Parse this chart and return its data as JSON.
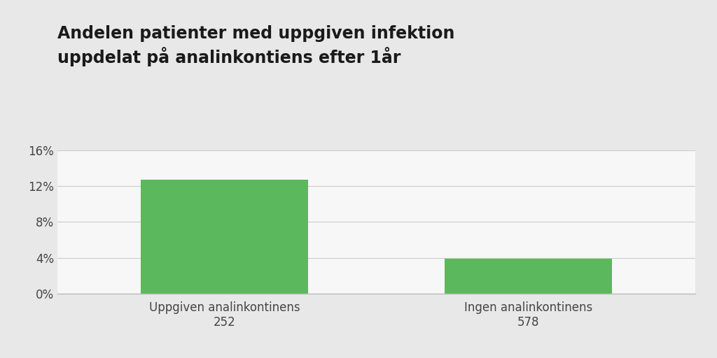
{
  "title_line1": "Andelen patienter med uppgiven infektion",
  "title_line2": "uppdelat på analinkontiens efter 1år",
  "categories_line1": [
    "Uppgiven analinkontinens",
    "Ingen analinkontinens"
  ],
  "categories_line2": [
    "252",
    "578"
  ],
  "values": [
    0.127,
    0.039
  ],
  "bar_color": "#5cb85c",
  "background_color": "#e8e8e8",
  "plot_background_color": "#f7f7f7",
  "ylim": [
    0,
    0.16
  ],
  "yticks": [
    0,
    0.04,
    0.08,
    0.12,
    0.16
  ],
  "ytick_labels": [
    "0%",
    "4%",
    "8%",
    "12%",
    "16%"
  ],
  "title_fontsize": 17,
  "tick_fontsize": 12,
  "label_fontsize": 12,
  "bar_width": 0.55
}
